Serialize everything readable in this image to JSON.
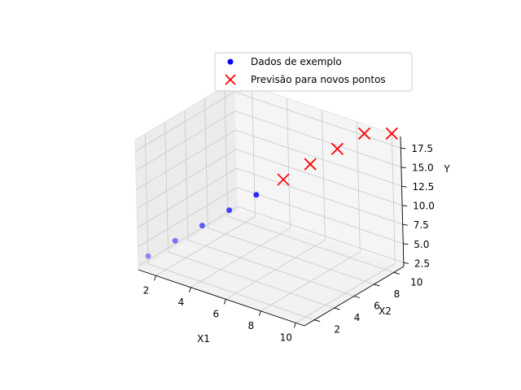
{
  "chart_data": {
    "type": "scatter3d",
    "axes": {
      "x": {
        "label": "X1",
        "range": [
          1,
          10.5
        ],
        "ticks": [
          2,
          4,
          6,
          8,
          10
        ]
      },
      "y": {
        "label": "X2",
        "range": [
          1,
          11
        ],
        "ticks": [
          2,
          4,
          6,
          8,
          10
        ]
      },
      "z": {
        "label": "Y",
        "range": [
          2,
          19
        ],
        "ticks": [
          "2.5",
          "5.0",
          "7.5",
          "10.0",
          "12.5",
          "15.0",
          "17.5"
        ]
      }
    },
    "grid": true,
    "legend_position": "top-right",
    "series": [
      {
        "name": "Dados de exemplo",
        "marker": "circle",
        "color": "#0000ff",
        "points": [
          {
            "x": 1,
            "y": 2,
            "z": 3
          },
          {
            "x": 2,
            "y": 3,
            "z": 5
          },
          {
            "x": 3,
            "y": 4,
            "z": 7
          },
          {
            "x": 4,
            "y": 5,
            "z": 9
          },
          {
            "x": 5,
            "y": 6,
            "z": 11
          }
        ]
      },
      {
        "name": "Previsão para novos pontos",
        "marker": "x",
        "color": "#ff0000",
        "points": [
          {
            "x": 6,
            "y": 7,
            "z": 13
          },
          {
            "x": 7,
            "y": 8,
            "z": 15
          },
          {
            "x": 8,
            "y": 9,
            "z": 17
          },
          {
            "x": 9,
            "y": 10,
            "z": 19
          },
          {
            "x": 10,
            "y": 11,
            "z": 21
          }
        ]
      }
    ]
  }
}
